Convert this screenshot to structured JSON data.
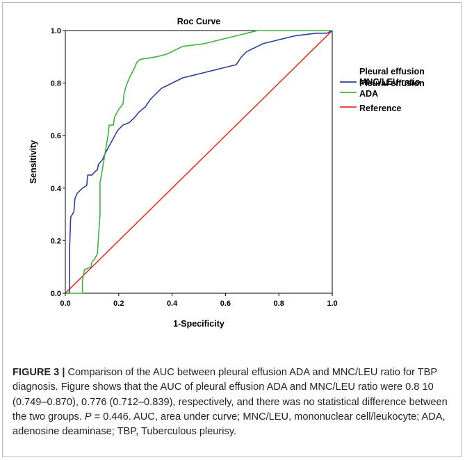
{
  "chart_data": {
    "type": "line",
    "title": "Roc Curve",
    "xlabel": "1-Specificity",
    "ylabel": "Sensitivity",
    "xlim": [
      0,
      1
    ],
    "ylim": [
      0,
      1
    ],
    "x_ticks": [
      "0.0",
      "0.2",
      "0.4",
      "0.6",
      "0.8",
      "1.0"
    ],
    "y_ticks": [
      "0.0",
      "0.2",
      "0.4",
      "0.6",
      "0.8",
      "1.0"
    ],
    "grid": false,
    "legend_position": "right",
    "series": [
      {
        "name": "Pleural effusion MNC/LEU ratio",
        "legend_lines": [
          "Pleural effusion",
          "MNC/LEU ratio"
        ],
        "color": "#2b3f9c",
        "points": [
          [
            0,
            0
          ],
          [
            0.016,
            0
          ],
          [
            0.016,
            0.17
          ],
          [
            0.02,
            0.29
          ],
          [
            0.032,
            0.31
          ],
          [
            0.036,
            0.36
          ],
          [
            0.044,
            0.38
          ],
          [
            0.064,
            0.4
          ],
          [
            0.08,
            0.41
          ],
          [
            0.084,
            0.45
          ],
          [
            0.1,
            0.45
          ],
          [
            0.108,
            0.46
          ],
          [
            0.12,
            0.47
          ],
          [
            0.124,
            0.49
          ],
          [
            0.14,
            0.51
          ],
          [
            0.148,
            0.53
          ],
          [
            0.164,
            0.56
          ],
          [
            0.18,
            0.59
          ],
          [
            0.196,
            0.62
          ],
          [
            0.216,
            0.64
          ],
          [
            0.24,
            0.65
          ],
          [
            0.26,
            0.67
          ],
          [
            0.276,
            0.69
          ],
          [
            0.3,
            0.71
          ],
          [
            0.32,
            0.74
          ],
          [
            0.34,
            0.76
          ],
          [
            0.36,
            0.78
          ],
          [
            0.38,
            0.79
          ],
          [
            0.4,
            0.8
          ],
          [
            0.44,
            0.82
          ],
          [
            0.48,
            0.83
          ],
          [
            0.52,
            0.84
          ],
          [
            0.56,
            0.85
          ],
          [
            0.6,
            0.86
          ],
          [
            0.64,
            0.87
          ],
          [
            0.66,
            0.9
          ],
          [
            0.68,
            0.92
          ],
          [
            0.7,
            0.93
          ],
          [
            0.72,
            0.94
          ],
          [
            0.74,
            0.95
          ],
          [
            0.78,
            0.96
          ],
          [
            0.82,
            0.97
          ],
          [
            0.86,
            0.98
          ],
          [
            0.9,
            0.985
          ],
          [
            0.94,
            0.99
          ],
          [
            0.98,
            0.99
          ],
          [
            1.0,
            1.0
          ]
        ]
      },
      {
        "name": "Pleural effusion ADA",
        "legend_lines": [
          "Pleural effusion",
          "ADA"
        ],
        "color": "#3cb43c",
        "points": [
          [
            0,
            0
          ],
          [
            0.064,
            0
          ],
          [
            0.064,
            0.05
          ],
          [
            0.072,
            0.09
          ],
          [
            0.096,
            0.1
          ],
          [
            0.1,
            0.12
          ],
          [
            0.11,
            0.13
          ],
          [
            0.12,
            0.15
          ],
          [
            0.13,
            0.3
          ],
          [
            0.13,
            0.42
          ],
          [
            0.14,
            0.48
          ],
          [
            0.15,
            0.54
          ],
          [
            0.16,
            0.6
          ],
          [
            0.164,
            0.64
          ],
          [
            0.18,
            0.64
          ],
          [
            0.184,
            0.67
          ],
          [
            0.2,
            0.7
          ],
          [
            0.216,
            0.72
          ],
          [
            0.22,
            0.76
          ],
          [
            0.228,
            0.79
          ],
          [
            0.24,
            0.82
          ],
          [
            0.25,
            0.84
          ],
          [
            0.26,
            0.86
          ],
          [
            0.268,
            0.88
          ],
          [
            0.28,
            0.89
          ],
          [
            0.34,
            0.9
          ],
          [
            0.38,
            0.91
          ],
          [
            0.4,
            0.92
          ],
          [
            0.42,
            0.93
          ],
          [
            0.44,
            0.94
          ],
          [
            0.52,
            0.95
          ],
          [
            0.56,
            0.96
          ],
          [
            0.6,
            0.97
          ],
          [
            0.64,
            0.98
          ],
          [
            0.68,
            0.99
          ],
          [
            0.72,
            1.0
          ],
          [
            1.0,
            1.0
          ]
        ]
      },
      {
        "name": "Reference",
        "legend_lines": [
          "Reference"
        ],
        "color": "#e5332a",
        "points": [
          [
            0,
            0
          ],
          [
            1,
            1
          ]
        ]
      }
    ]
  },
  "caption": {
    "label": "FIGURE 3 |",
    "part1": "Comparison of the AUC between pleural effusion ADA and MNC/LEU ratio for TBP diagnosis. Figure shows that the AUC of pleural effusion ADA and MNC/LEU ratio were 0.8 10 (0.749–0.870), 0.776 (0.712–0.839), respectively, and there was no statistical difference between the two groups. ",
    "p_symbol": "P",
    "part2": " = 0.446. AUC, area under curve; MNC/LEU, mononuclear cell/leukocyte; ADA, adenosine deaminase; TBP, Tuberculous pleurisy."
  }
}
